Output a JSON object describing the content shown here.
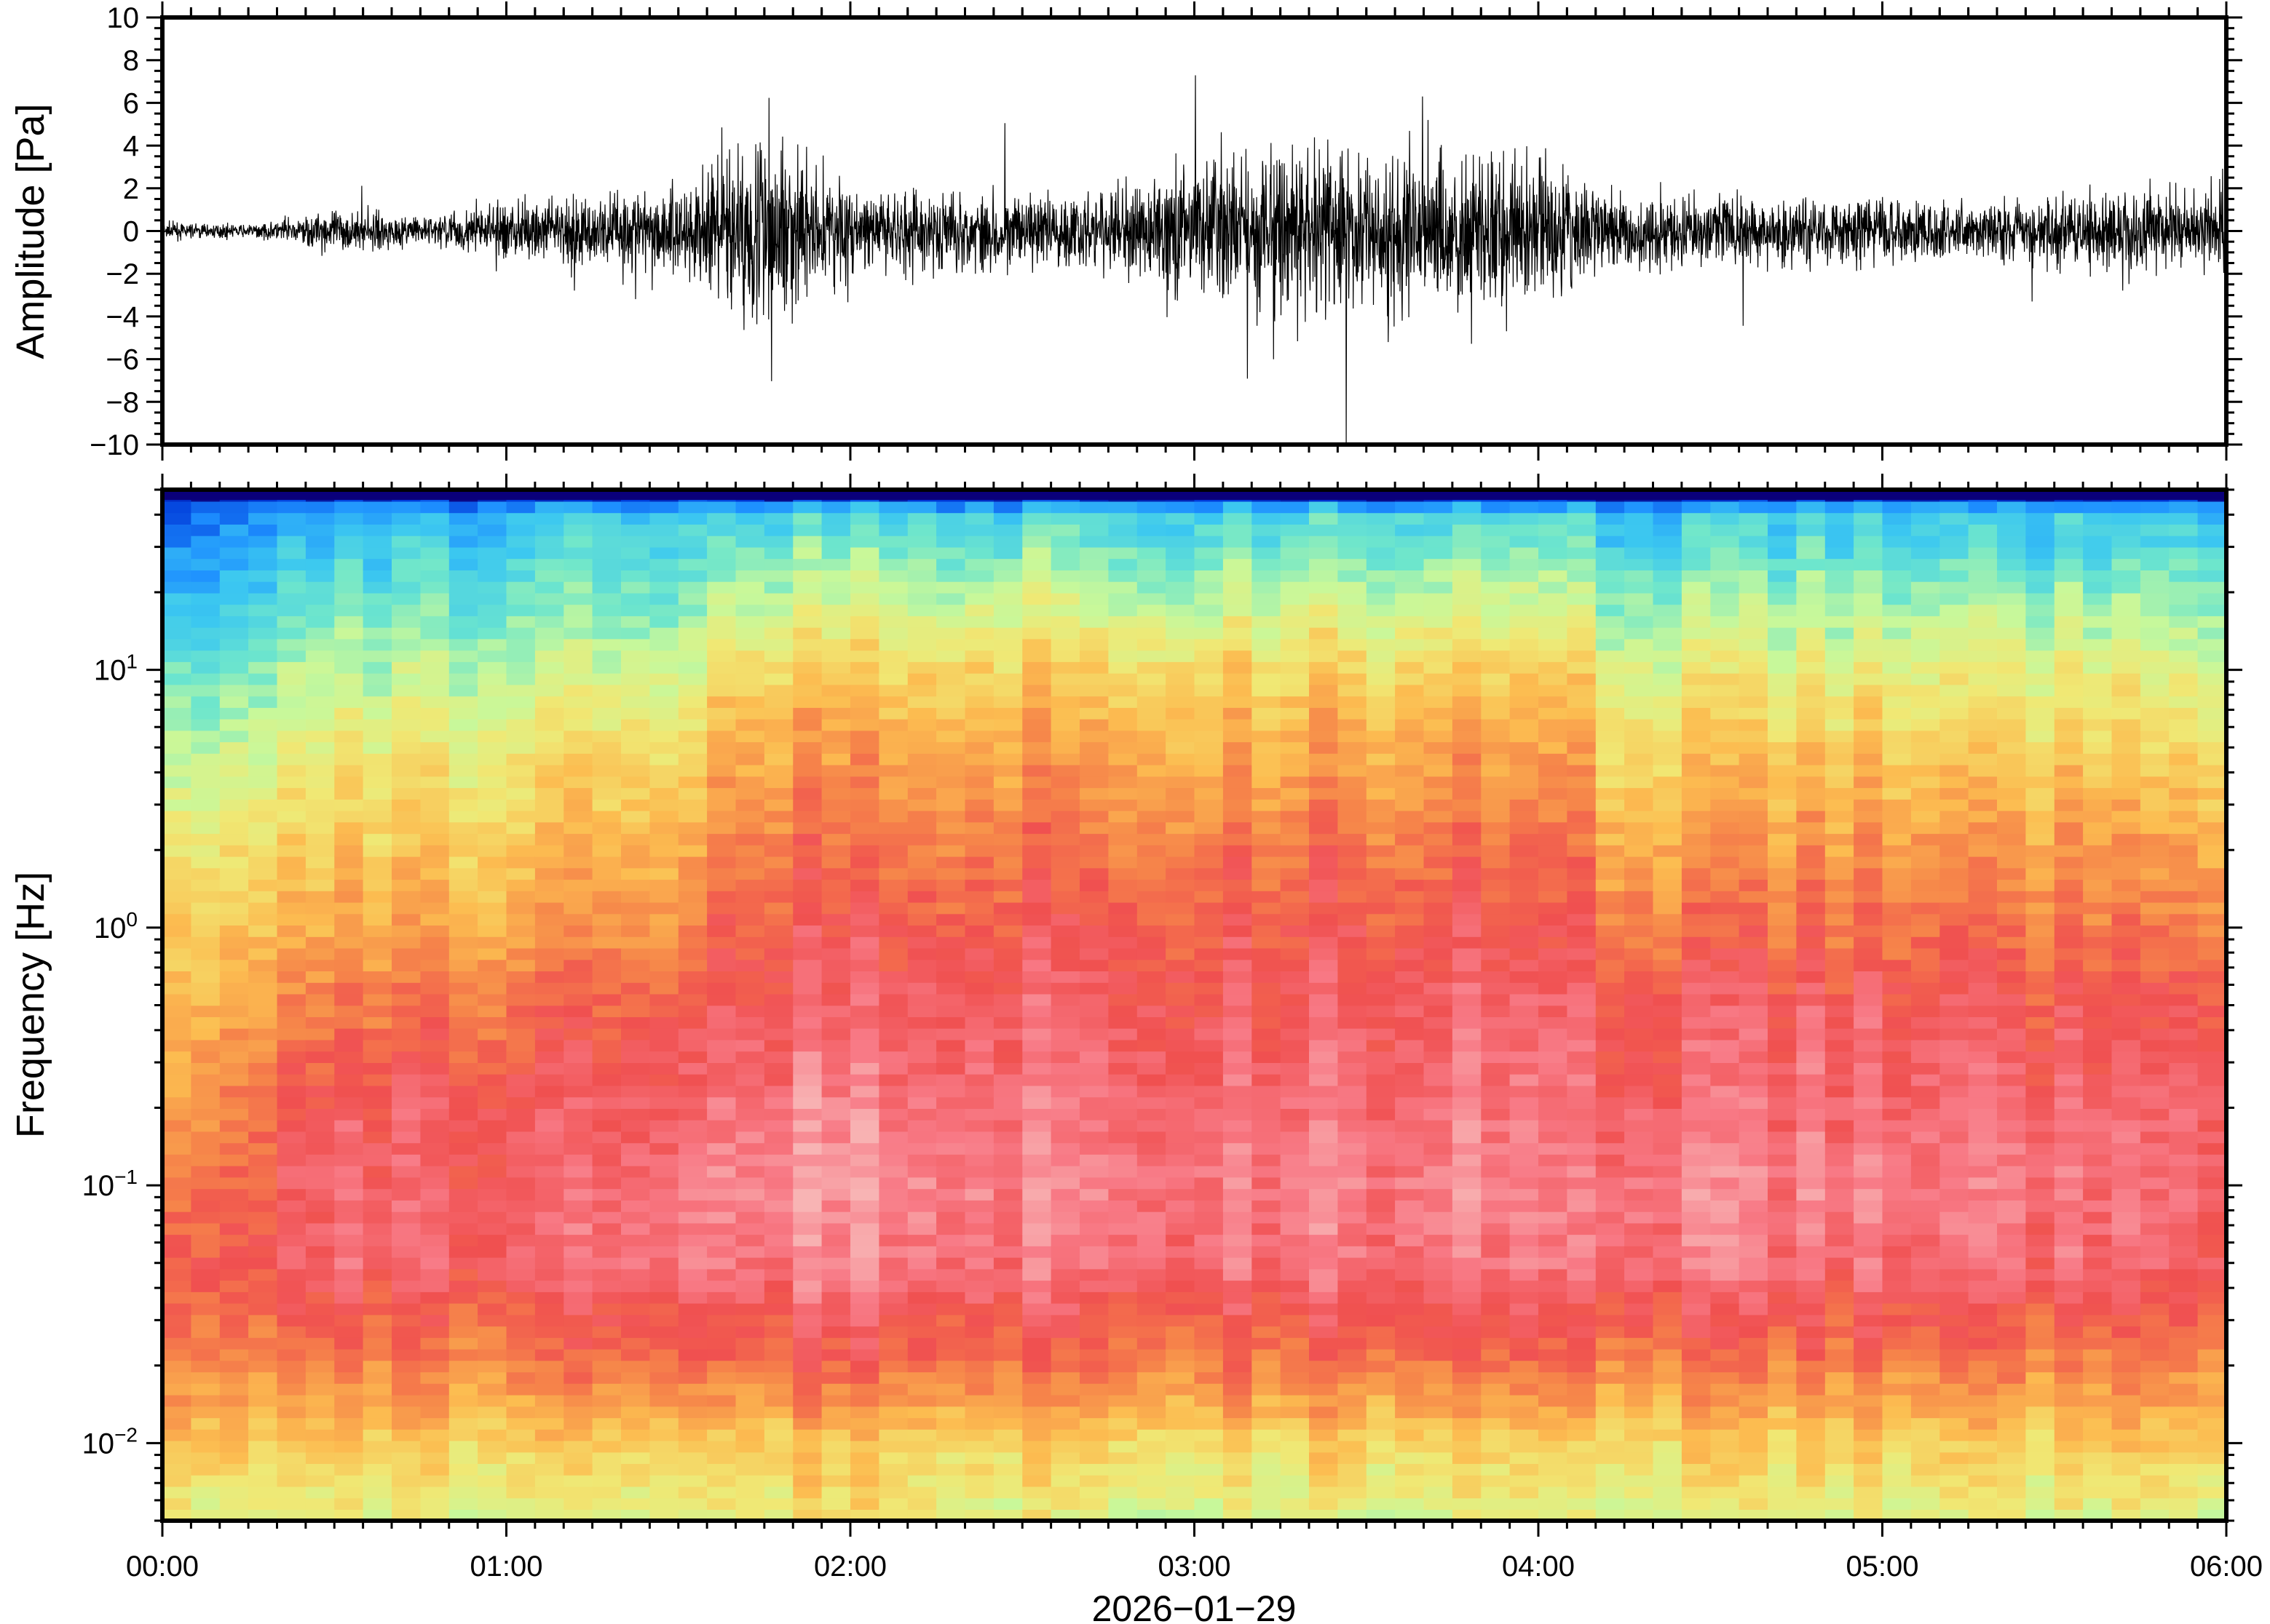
{
  "chart_data": [
    {
      "type": "line",
      "ylabel": "Amplitude [Pa]",
      "ylim": [
        -10,
        10
      ],
      "yticks": [
        "10",
        "8",
        "6",
        "4",
        "2",
        "0",
        "−2",
        "−4",
        "−6",
        "−8",
        "−10"
      ],
      "ytick_values": [
        10,
        8,
        6,
        4,
        2,
        0,
        -2,
        -4,
        -6,
        -8,
        -10
      ],
      "x_range_hours": [
        0,
        6
      ],
      "line_color": "#000000",
      "envelope": {
        "hours": [
          0,
          0.25,
          0.5,
          0.75,
          1,
          1.25,
          1.5,
          1.75,
          2,
          2.25,
          2.5,
          2.75,
          3,
          3.25,
          3.5,
          3.75,
          4,
          4.25,
          4.5,
          4.75,
          5,
          5.25,
          5.5,
          5.75,
          6
        ],
        "amplitude_pa": [
          0.6,
          0.4,
          1.5,
          1.0,
          2.0,
          2.5,
          3.5,
          7.0,
          3.0,
          3.0,
          2.5,
          3.0,
          5.0,
          5.5,
          6.0,
          6.0,
          5.0,
          2.5,
          2.5,
          2.5,
          2.5,
          2.0,
          2.5,
          3.0,
          3.0
        ]
      }
    },
    {
      "type": "heatmap",
      "ylabel": "Frequency [Hz]",
      "xlabel": "2026−01−29",
      "yscale": "log",
      "ylim": [
        0.005,
        50
      ],
      "yticks": [
        {
          "base": "10",
          "exp": "1"
        },
        {
          "base": "10",
          "exp": "0"
        },
        {
          "base": "10",
          "exp": "−1"
        },
        {
          "base": "10",
          "exp": "−2"
        }
      ],
      "ytick_values": [
        10,
        1,
        0.1,
        0.01
      ],
      "xticks": [
        "00:00",
        "01:00",
        "02:00",
        "03:00",
        "04:00",
        "05:00",
        "06:00"
      ],
      "colormap": [
        "#0a007a",
        "#0038d8",
        "#1e90ff",
        "#3cc8f0",
        "#6ee6cc",
        "#c8f89a",
        "#f0e874",
        "#fcbc50",
        "#f6864a",
        "#f05050",
        "#f87a86",
        "#f8b4b4"
      ],
      "grid": {
        "hours": [
          0,
          0.5,
          1,
          1.5,
          2,
          2.5,
          3,
          3.5,
          4,
          4.5,
          5,
          5.5,
          6
        ],
        "log10_freq": [
          -2.3,
          -2.0,
          -1.7,
          -1.3,
          -1.0,
          -0.7,
          -0.3,
          0,
          0.3,
          0.7,
          1.0,
          1.3,
          1.6,
          1.7
        ],
        "relative_power": [
          [
            0.5,
            0.5,
            0.5,
            0.5,
            0.55,
            0.5,
            0.5,
            0.5,
            0.5,
            0.5,
            0.5,
            0.5,
            0.5
          ],
          [
            0.62,
            0.6,
            0.6,
            0.62,
            0.62,
            0.6,
            0.6,
            0.6,
            0.6,
            0.6,
            0.6,
            0.6,
            0.62
          ],
          [
            0.72,
            0.72,
            0.74,
            0.76,
            0.78,
            0.76,
            0.76,
            0.76,
            0.76,
            0.74,
            0.74,
            0.74,
            0.72
          ],
          [
            0.78,
            0.86,
            0.86,
            0.9,
            0.92,
            0.9,
            0.9,
            0.9,
            0.9,
            0.9,
            0.88,
            0.88,
            0.86
          ],
          [
            0.72,
            0.86,
            0.86,
            0.9,
            0.95,
            0.93,
            0.92,
            0.92,
            0.92,
            0.92,
            0.9,
            0.9,
            0.88
          ],
          [
            0.66,
            0.84,
            0.84,
            0.86,
            0.92,
            0.9,
            0.9,
            0.9,
            0.9,
            0.88,
            0.88,
            0.88,
            0.86
          ],
          [
            0.62,
            0.74,
            0.76,
            0.8,
            0.86,
            0.86,
            0.86,
            0.86,
            0.86,
            0.84,
            0.84,
            0.82,
            0.82
          ],
          [
            0.58,
            0.66,
            0.68,
            0.72,
            0.82,
            0.82,
            0.82,
            0.82,
            0.82,
            0.76,
            0.76,
            0.76,
            0.74
          ],
          [
            0.52,
            0.6,
            0.62,
            0.66,
            0.76,
            0.76,
            0.76,
            0.76,
            0.76,
            0.7,
            0.7,
            0.7,
            0.68
          ],
          [
            0.42,
            0.52,
            0.54,
            0.58,
            0.68,
            0.68,
            0.68,
            0.68,
            0.68,
            0.6,
            0.6,
            0.6,
            0.58
          ],
          [
            0.34,
            0.44,
            0.46,
            0.48,
            0.6,
            0.6,
            0.6,
            0.6,
            0.6,
            0.52,
            0.52,
            0.52,
            0.5
          ],
          [
            0.22,
            0.34,
            0.36,
            0.38,
            0.46,
            0.46,
            0.46,
            0.46,
            0.46,
            0.4,
            0.4,
            0.4,
            0.4
          ],
          [
            0.12,
            0.24,
            0.26,
            0.28,
            0.32,
            0.32,
            0.32,
            0.32,
            0.32,
            0.28,
            0.28,
            0.28,
            0.28
          ],
          [
            0.02,
            0.02,
            0.02,
            0.02,
            0.02,
            0.02,
            0.02,
            0.02,
            0.02,
            0.02,
            0.02,
            0.02,
            0.02
          ]
        ]
      }
    }
  ]
}
